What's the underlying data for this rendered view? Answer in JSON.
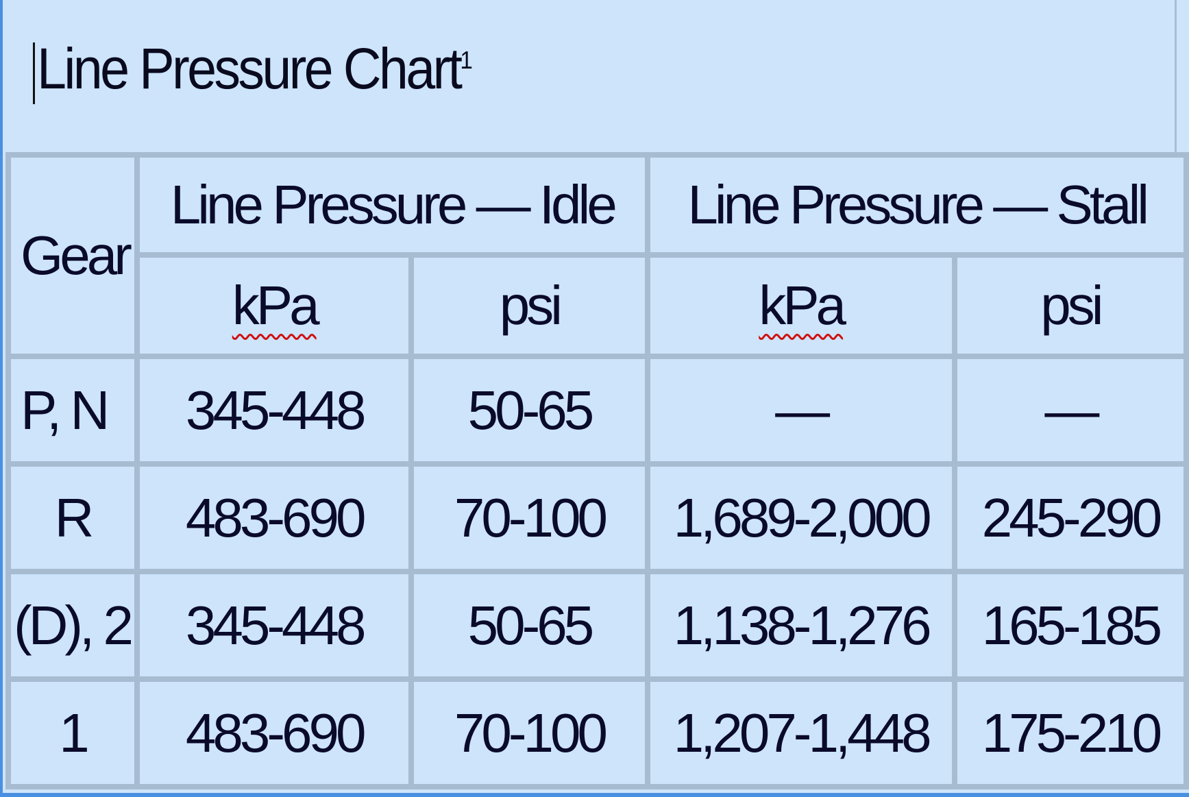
{
  "title": "Line Pressure Chart",
  "title_footnote": "1",
  "table": {
    "gear_header": "Gear",
    "group_headers": [
      "Line Pressure — Idle",
      "Line Pressure — Stall"
    ],
    "unit_headers": [
      "kPa",
      "psi",
      "kPa",
      "psi"
    ],
    "rows": [
      {
        "gear": "P, N",
        "idle_kpa": "345-448",
        "idle_psi": "50-65",
        "stall_kpa": "—",
        "stall_psi": "—"
      },
      {
        "gear": "R",
        "idle_kpa": "483-690",
        "idle_psi": "70-100",
        "stall_kpa": "1,689-2,000",
        "stall_psi": "245-290"
      },
      {
        "gear": "(D), 2",
        "idle_kpa": "345-448",
        "idle_psi": "50-65",
        "stall_kpa": "1,138-1,276",
        "stall_psi": "165-185"
      },
      {
        "gear": "1",
        "idle_kpa": "483-690",
        "idle_psi": "70-100",
        "stall_kpa": "1,207-1,448",
        "stall_psi": "175-210"
      }
    ]
  },
  "colors": {
    "cell_bg": "#cde4fb",
    "grid": "#a7bbd1",
    "selection_border": "#4a90e2",
    "spellcheck": "#d01010"
  }
}
